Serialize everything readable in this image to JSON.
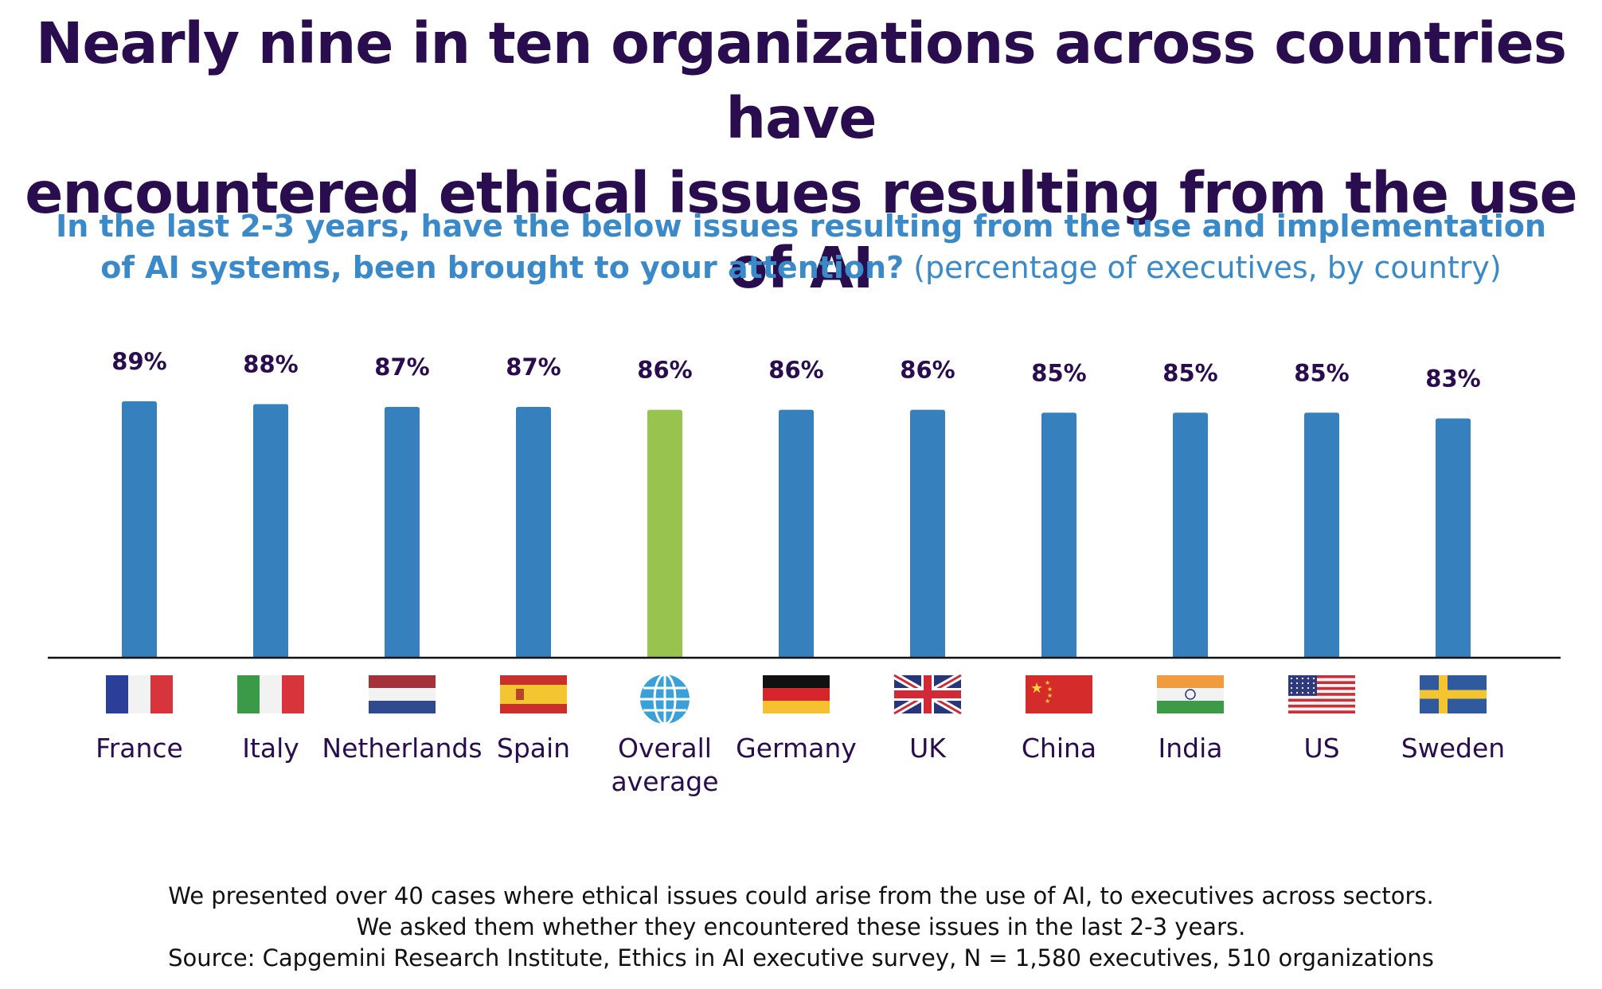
{
  "title_line1": "Nearly nine in ten organizations across countries have",
  "title_line2": "encountered ethical issues resulting from the use of AI",
  "subtitle_question": "In the last 2-3 years, have the below issues resulting from the use and implementation of AI systems, been brought to your attention?",
  "subtitle_note": "(percentage of executives, by country)",
  "colors": {
    "bar": "#3580bd",
    "highlight": "#98c34f",
    "label": "#2a0d4e",
    "category": "#2a0d4e",
    "title": "#2a0d4e",
    "subtitle": "#3a8ac9"
  },
  "chart_data": {
    "type": "bar",
    "categories": [
      "France",
      "Italy",
      "Netherlands",
      "Spain",
      "Overall average",
      "Germany",
      "UK",
      "China",
      "India",
      "US",
      "Sweden"
    ],
    "values": [
      89,
      88,
      87,
      87,
      86,
      86,
      86,
      85,
      85,
      85,
      83
    ],
    "value_labels": [
      "89%",
      "88%",
      "87%",
      "87%",
      "86%",
      "86%",
      "86%",
      "85%",
      "85%",
      "85%",
      "83%"
    ],
    "highlight_category": "Overall average",
    "flag_icons": [
      "france-flag-icon",
      "italy-flag-icon",
      "netherlands-flag-icon",
      "spain-flag-icon",
      "globe-icon",
      "germany-flag-icon",
      "uk-flag-icon",
      "china-flag-icon",
      "india-flag-icon",
      "us-flag-icon",
      "sweden-flag-icon"
    ],
    "title": "",
    "xlabel": "",
    "ylabel": "",
    "ylim": [
      0,
      100
    ],
    "grid": false,
    "legend": "none"
  },
  "footnotes": [
    "We presented over 40 cases where ethical issues could arise from the use of AI, to executives across sectors.",
    "We asked them whether they encountered these issues in the last 2-3 years.",
    "Source:  Capgemini Research Institute, Ethics in AI executive survey, N = 1,580 executives, 510 organizations"
  ]
}
